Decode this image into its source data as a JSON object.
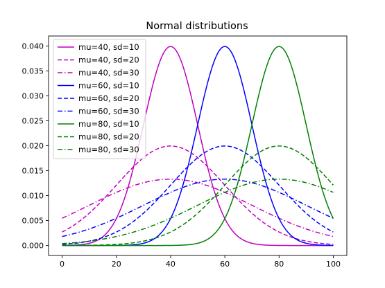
{
  "chart_data": {
    "type": "line",
    "title": "Normal distributions",
    "xlabel": "",
    "ylabel": "",
    "xlim": [
      -5,
      105
    ],
    "ylim": [
      -0.002,
      0.042
    ],
    "x_ticks": [
      0,
      20,
      40,
      60,
      80,
      100
    ],
    "y_ticks": [
      0.0,
      0.005,
      0.01,
      0.015,
      0.02,
      0.025,
      0.03,
      0.035,
      0.04
    ],
    "y_tick_labels": [
      "0.000",
      "0.005",
      "0.010",
      "0.015",
      "0.020",
      "0.025",
      "0.030",
      "0.035",
      "0.040"
    ],
    "x_tick_labels": [
      "0",
      "20",
      "40",
      "60",
      "80",
      "100"
    ],
    "grid": false,
    "legend_position": "top-left",
    "x_domain": [
      0,
      100
    ],
    "series": [
      {
        "name": "mu=40, sd=10",
        "mu": 40,
        "sd": 10,
        "color": "#bf00bf",
        "dash": "solid"
      },
      {
        "name": "mu=40, sd=20",
        "mu": 40,
        "sd": 20,
        "color": "#bf00bf",
        "dash": "dashed"
      },
      {
        "name": "mu=40, sd=30",
        "mu": 40,
        "sd": 30,
        "color": "#bf00bf",
        "dash": "dashdot"
      },
      {
        "name": "mu=60, sd=10",
        "mu": 60,
        "sd": 10,
        "color": "#0000ff",
        "dash": "solid"
      },
      {
        "name": "mu=60, sd=20",
        "mu": 60,
        "sd": 20,
        "color": "#0000ff",
        "dash": "dashed"
      },
      {
        "name": "mu=60, sd=30",
        "mu": 60,
        "sd": 30,
        "color": "#0000ff",
        "dash": "dashdot"
      },
      {
        "name": "mu=80, sd=10",
        "mu": 80,
        "sd": 10,
        "color": "#008000",
        "dash": "solid"
      },
      {
        "name": "mu=80, sd=20",
        "mu": 80,
        "sd": 20,
        "color": "#008000",
        "dash": "dashed"
      },
      {
        "name": "mu=80, sd=30",
        "mu": 80,
        "sd": 30,
        "color": "#008000",
        "dash": "dashdot"
      }
    ]
  }
}
